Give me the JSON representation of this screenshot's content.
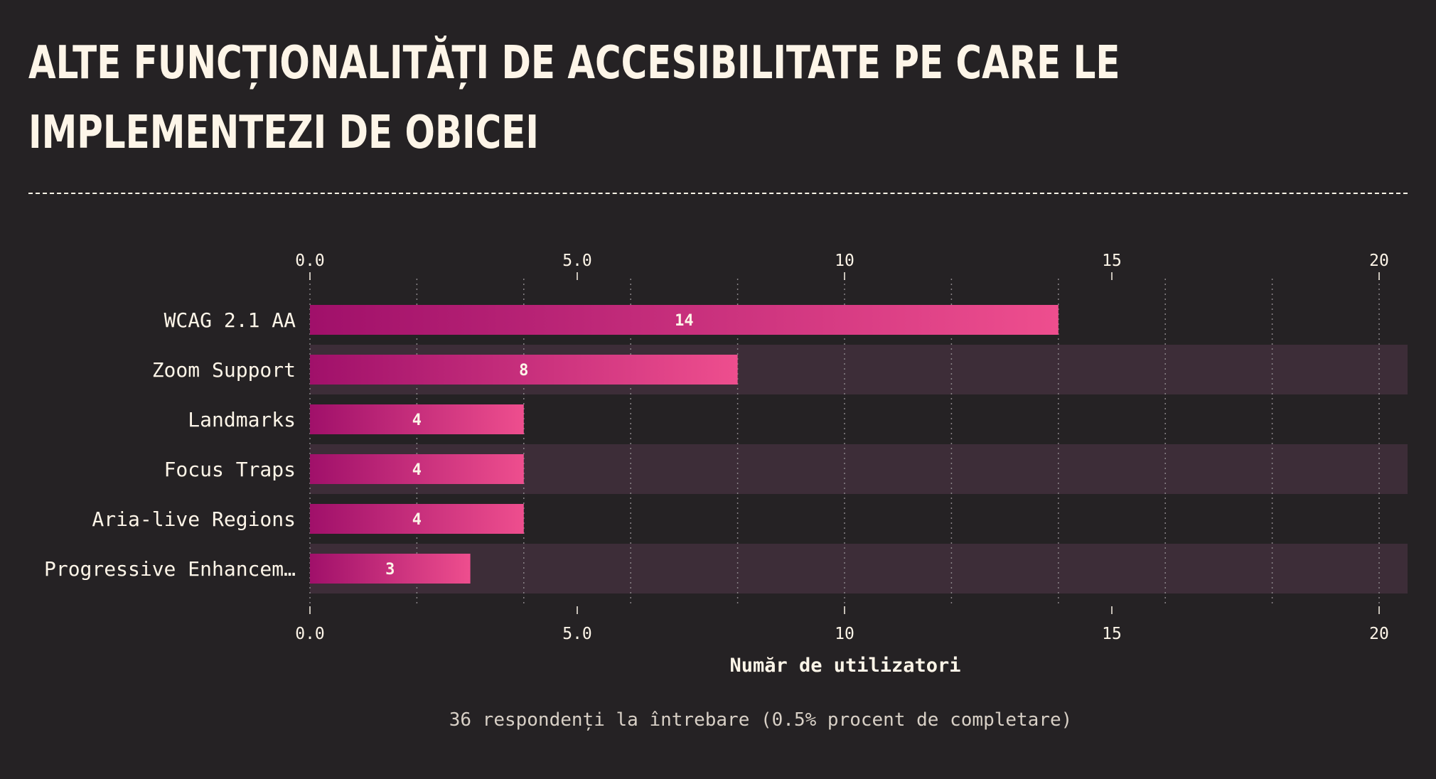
{
  "title": "Alte funcționalități de accesibilitate pe care le implementezi de obicei",
  "caption": "36 respondenți la întrebare (0.5% procent de completare)",
  "colors": {
    "background": "#252224",
    "text": "#fdf5e8",
    "band": "#3d2d38",
    "bar_start": "#a0106a",
    "bar_end": "#ee4e8e",
    "grid": "#8a8488"
  },
  "chart_data": {
    "type": "bar",
    "orientation": "horizontal",
    "categories": [
      "WCAG 2.1 AA",
      "Zoom Support",
      "Landmarks",
      "Focus Traps",
      "Aria-live Regions",
      "Progressive Enhancem…"
    ],
    "values": [
      14,
      8,
      4,
      4,
      4,
      3
    ],
    "xlabel": "Număr de utilizatori",
    "xlim": [
      0,
      20
    ],
    "ticks": [
      0,
      5,
      10,
      15,
      20
    ],
    "tick_labels": [
      "0.0",
      "5.0",
      "10",
      "15",
      "20"
    ],
    "minor_grid_step": 2,
    "grid": true,
    "legend": "none"
  }
}
